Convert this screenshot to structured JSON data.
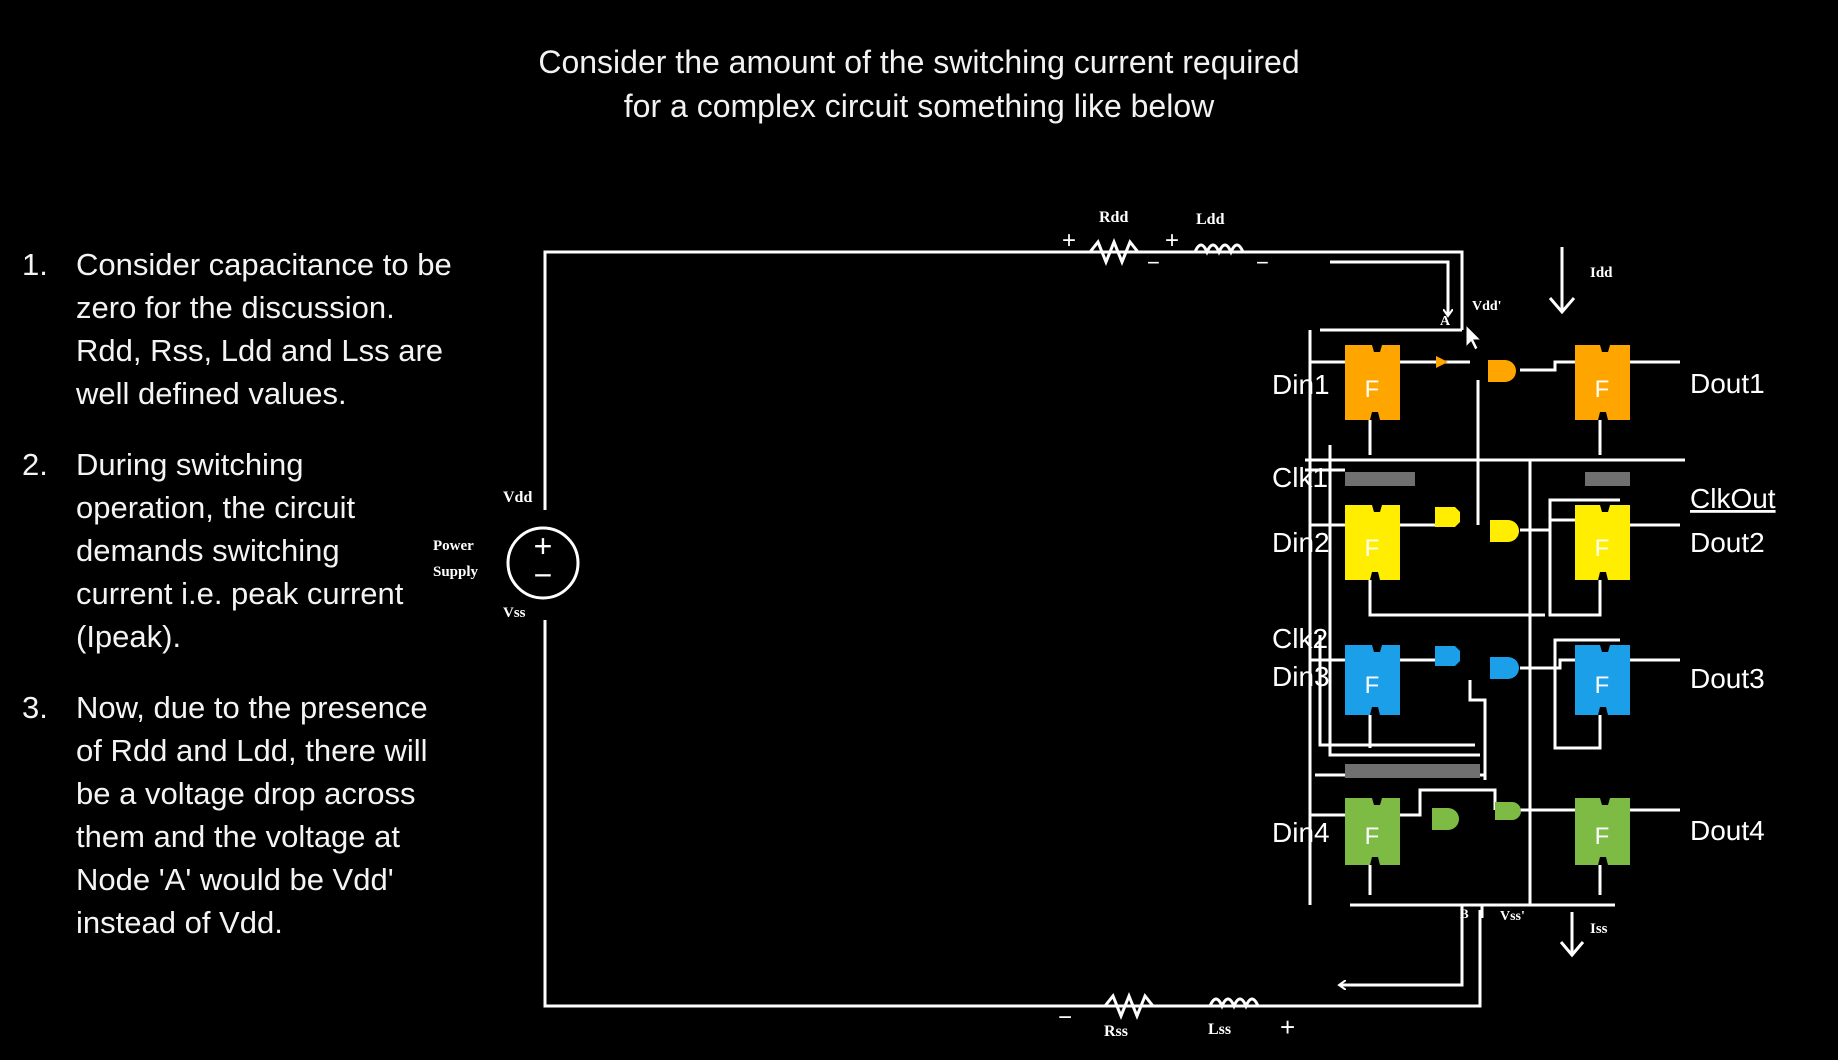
{
  "title": {
    "line1": "Consider the amount of the switching current required",
    "line2": "for a complex circuit something like below"
  },
  "points": [
    {
      "num": "1.",
      "lines": [
        "Consider capacitance to be",
        "zero for the discussion.",
        "Rdd, Rss, Ldd and Lss are",
        "well defined values."
      ]
    },
    {
      "num": "2.",
      "lines": [
        "During switching",
        "operation, the circuit",
        "demands switching",
        "current i.e. peak current",
        "(Ipeak)."
      ]
    },
    {
      "num": "3.",
      "lines": [
        "Now, due to the presence",
        "of Rdd and Ldd, there will",
        "be a voltage drop across",
        "them and the voltage at",
        "Node 'A' would be Vdd'",
        "instead of Vdd."
      ]
    }
  ],
  "circuit": {
    "rdd": "Rdd",
    "ldd": "Ldd",
    "rss": "Rss",
    "lss": "Lss",
    "idd": "Idd",
    "iss": "Iss",
    "vdd": "Vdd",
    "vss": "Vss",
    "power": "Power",
    "supply": "Supply",
    "vdd_prime": "Vdd'",
    "vss_prime": "Vss'",
    "node_a": "A",
    "node_b": "B",
    "plus": "+",
    "minus": "−",
    "ff_label": "F",
    "din": [
      "Din1",
      "Din2",
      "Din3",
      "Din4"
    ],
    "dout": [
      "Dout1",
      "Dout2",
      "Dout3",
      "Dout4"
    ],
    "clk": [
      "Clk1",
      "Clk2"
    ],
    "clkout": "ClkOut"
  },
  "colors": {
    "background": "#000000",
    "wire": "#ffffff",
    "orange": "#ffa500",
    "yellow": "#ffee00",
    "blue": "#1b9fe8",
    "green": "#7dbb45",
    "gray": "#707070"
  }
}
